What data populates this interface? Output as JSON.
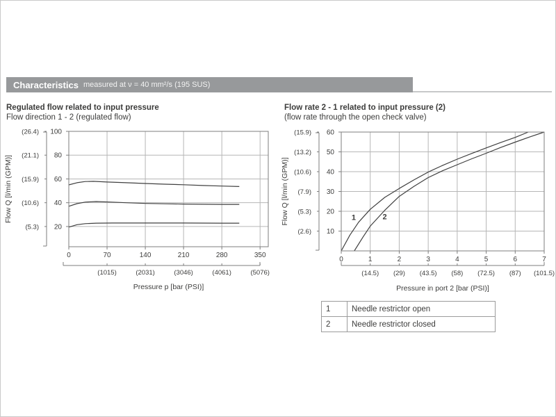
{
  "page": {
    "header_title": "Characteristics",
    "header_subtitle": "measured at ν = 40 mm²/s (195 SUS)"
  },
  "chart_data": [
    {
      "id": "regulated-flow",
      "type": "line",
      "title": "Regulated flow related to input pressure",
      "subtitle": "Flow direction 1 - 2 (regulated flow)",
      "xlabel": "Pressure p [bar (PSI)]",
      "ylabel": "Flow Q [l/min (GPM)]",
      "xlim": [
        0,
        365
      ],
      "ylim": [
        3,
        100
      ],
      "grid": true,
      "x_ticks": [
        0,
        70,
        140,
        210,
        280,
        350
      ],
      "x_ticks_secondary": [
        {
          "at": 70,
          "label": "(1015)"
        },
        {
          "at": 140,
          "label": "(2031)"
        },
        {
          "at": 210,
          "label": "(3046)"
        },
        {
          "at": 280,
          "label": "(4061)"
        },
        {
          "at": 350,
          "label": "(5076)"
        }
      ],
      "y_ticks": [
        20,
        40,
        60,
        80,
        100
      ],
      "y_ticks_secondary": [
        {
          "at": 20,
          "label": "(5.3)"
        },
        {
          "at": 40,
          "label": "(10.6)"
        },
        {
          "at": 60,
          "label": "(15.9)"
        },
        {
          "at": 80,
          "label": "(21.1)"
        },
        {
          "at": 100,
          "label": "(26.4)"
        }
      ],
      "series": [
        {
          "name": "curve-60lpm",
          "points": [
            [
              0,
              55
            ],
            [
              15,
              56.8
            ],
            [
              30,
              57.8
            ],
            [
              45,
              58
            ],
            [
              70,
              57.4
            ],
            [
              105,
              56.8
            ],
            [
              140,
              56.2
            ],
            [
              175,
              55.6
            ],
            [
              210,
              55.1
            ],
            [
              245,
              54.5
            ],
            [
              280,
              54
            ],
            [
              312,
              53.6
            ]
          ]
        },
        {
          "name": "curve-40lpm",
          "points": [
            [
              0,
              37
            ],
            [
              15,
              39.2
            ],
            [
              30,
              40.5
            ],
            [
              50,
              41
            ],
            [
              75,
              40.6
            ],
            [
              105,
              40
            ],
            [
              140,
              39.4
            ],
            [
              175,
              39.1
            ],
            [
              210,
              38.9
            ],
            [
              245,
              38.7
            ],
            [
              280,
              38.6
            ],
            [
              312,
              38.6
            ]
          ]
        },
        {
          "name": "curve-20lpm",
          "points": [
            [
              0,
              19.5
            ],
            [
              15,
              21.5
            ],
            [
              30,
              22.4
            ],
            [
              50,
              22.8
            ],
            [
              80,
              22.9
            ],
            [
              140,
              22.9
            ],
            [
              210,
              22.9
            ],
            [
              280,
              22.8
            ],
            [
              312,
              22.8
            ]
          ]
        }
      ]
    },
    {
      "id": "check-valve-flow",
      "type": "line",
      "title": "Flow rate 2 - 1 related to input pressure (2)",
      "subtitle": "(flow rate through the open check valve)",
      "xlabel": "Pressure in port 2 [bar (PSI)]",
      "ylabel": "Flow Q [l/min (GPM)]",
      "xlim": [
        0,
        7
      ],
      "ylim": [
        0,
        60
      ],
      "grid": true,
      "x_ticks": [
        0,
        1,
        2,
        3,
        4,
        5,
        6,
        7
      ],
      "x_ticks_secondary": [
        {
          "at": 1,
          "label": "(14.5)"
        },
        {
          "at": 2,
          "label": "(29)"
        },
        {
          "at": 3,
          "label": "(43.5)"
        },
        {
          "at": 4,
          "label": "(58)"
        },
        {
          "at": 5,
          "label": "(72.5)"
        },
        {
          "at": 6,
          "label": "(87)"
        },
        {
          "at": 7,
          "label": "(101.5)"
        }
      ],
      "y_ticks": [
        10,
        20,
        30,
        40,
        50,
        60
      ],
      "y_ticks_secondary": [
        {
          "at": 10,
          "label": "(2.6)"
        },
        {
          "at": 20,
          "label": "(5.3)"
        },
        {
          "at": 30,
          "label": "(7.9)"
        },
        {
          "at": 40,
          "label": "(10.6)"
        },
        {
          "at": 50,
          "label": "(13.2)"
        },
        {
          "at": 60,
          "label": "(15.9)"
        }
      ],
      "series": [
        {
          "name": "curve-1",
          "label": "1",
          "label_at": [
            0.43,
            15.6
          ],
          "points": [
            [
              0,
              0
            ],
            [
              0.3,
              8
            ],
            [
              0.6,
              14.5
            ],
            [
              1,
              21
            ],
            [
              1.5,
              27
            ],
            [
              2,
              31.5
            ],
            [
              2.5,
              35.8
            ],
            [
              3,
              39.8
            ],
            [
              3.5,
              43.2
            ],
            [
              4,
              46.3
            ],
            [
              4.5,
              49.2
            ],
            [
              5,
              52
            ],
            [
              5.5,
              54.7
            ],
            [
              6,
              57.3
            ],
            [
              6.45,
              60
            ]
          ]
        },
        {
          "name": "curve-2",
          "label": "2",
          "label_at": [
            1.5,
            16
          ],
          "points": [
            [
              0.45,
              0
            ],
            [
              0.75,
              7
            ],
            [
              1,
              12.5
            ],
            [
              1.5,
              20.5
            ],
            [
              2,
              27.5
            ],
            [
              2.5,
              32.5
            ],
            [
              3,
              37
            ],
            [
              3.5,
              40.5
            ],
            [
              4,
              43.5
            ],
            [
              4.5,
              46.5
            ],
            [
              5,
              49.3
            ],
            [
              5.5,
              52.2
            ],
            [
              6,
              54.9
            ],
            [
              6.5,
              57.5
            ],
            [
              7,
              60
            ]
          ]
        }
      ]
    }
  ],
  "legend_table": {
    "rows": [
      {
        "id": "1",
        "label": "Needle restrictor open"
      },
      {
        "id": "2",
        "label": "Needle restrictor closed"
      }
    ]
  }
}
